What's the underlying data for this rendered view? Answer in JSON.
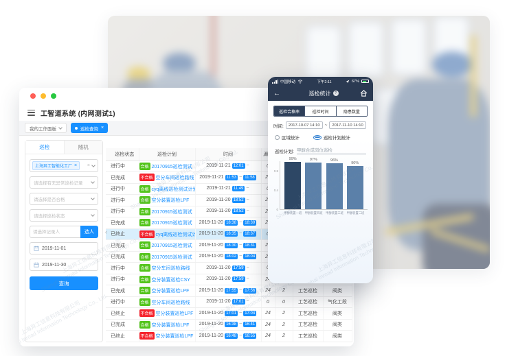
{
  "app": {
    "window_title": "工智道系统 (内网测试1)",
    "workspace_tab": "我的工作面板",
    "active_tab": "巡检查询"
  },
  "sidebar": {
    "tabs": [
      {
        "label": "巡检"
      },
      {
        "label": "随机"
      }
    ],
    "factory_tag": "上海异工智能化工厂",
    "selects": [
      {
        "placeholder": "请选择有无异常巡检记录"
      },
      {
        "placeholder": "请选择是否合格"
      },
      {
        "placeholder": "请选择巡检状态"
      }
    ],
    "person_input_placeholder": "请选择记录人",
    "pick_person_button": "选人",
    "date_from": "2019-11-01",
    "date_to": "2019-11-30",
    "query_button": "查询"
  },
  "table": {
    "headers": [
      "巡检状态",
      "巡检计划",
      "时间",
      "漏检",
      "异常",
      "类型",
      "工段"
    ],
    "rows": [
      {
        "status": "进行中",
        "qualified": "合格",
        "plan": "20170915巡检测试",
        "date": "2019-11-21",
        "start": "12:01",
        "end": "",
        "n1": "0",
        "n2": "",
        "type": "工艺巡检",
        "seg": "阀类",
        "highlight": false
      },
      {
        "status": "已完成",
        "qualified": "不合格",
        "plan": "空分车间巡检路线",
        "date": "2019-11-21",
        "start": "11:53",
        "end": "11:58",
        "n1": "24",
        "n2": "2",
        "type": "工艺巡检",
        "seg": "阀类",
        "highlight": false
      },
      {
        "status": "进行中",
        "qualified": "合格",
        "plan": "cyq离线巡检测试计划",
        "date": "2019-11-21",
        "start": "11:49",
        "end": "",
        "n1": "0",
        "n2": "",
        "type": "工艺巡检",
        "seg": "阀类",
        "highlight": false
      },
      {
        "status": "进行中",
        "qualified": "合格",
        "plan": "空分装置巡检LPF",
        "date": "2019-11-20",
        "start": "18:52",
        "end": "",
        "n1": "24",
        "n2": "2",
        "type": "工艺巡检",
        "seg": "阀类",
        "highlight": false
      },
      {
        "status": "进行中",
        "qualified": "合格",
        "plan": "20170915巡检测试",
        "date": "2019-11-20",
        "start": "18:52",
        "end": "",
        "n1": "24",
        "n2": "2",
        "type": "工艺巡检",
        "seg": "阀类",
        "highlight": false
      },
      {
        "status": "已完成",
        "qualified": "合格",
        "plan": "20170915巡检测试",
        "date": "2019-11-20",
        "start": "18:38",
        "end": "18:39",
        "n1": "24",
        "n2": "2",
        "type": "工艺巡检",
        "seg": "阀类",
        "highlight": false
      },
      {
        "status": "已终止",
        "qualified": "不合格",
        "plan": "cyq离线巡检测试计划",
        "date": "2019-11-20",
        "start": "18:35",
        "end": "18:37",
        "n1": "0",
        "n2": "2",
        "type": "工艺巡检",
        "seg": "阀类",
        "highlight": true
      },
      {
        "status": "已完成",
        "qualified": "合格",
        "plan": "20170915巡检测试",
        "date": "2019-11-20",
        "start": "18:30",
        "end": "18:31",
        "n1": "24",
        "n2": "2",
        "type": "工艺巡检",
        "seg": "阀类",
        "highlight": false
      },
      {
        "status": "已完成",
        "qualified": "合格",
        "plan": "20170915巡检测试",
        "date": "2019-11-20",
        "start": "18:02",
        "end": "18:04",
        "n1": "24",
        "n2": "2",
        "type": "工艺巡检",
        "seg": "阀类",
        "highlight": false
      },
      {
        "status": "进行中",
        "qualified": "合格",
        "plan": "空分车间巡检路线",
        "date": "2019-11-20",
        "start": "17:59",
        "end": "",
        "n1": "0",
        "n2": "",
        "type": "工艺巡检",
        "seg": "阀类",
        "highlight": false
      },
      {
        "status": "进行中",
        "qualified": "合格",
        "plan": "空分装置巡检CSY",
        "date": "2019-11-20",
        "start": "17:59",
        "end": "",
        "n1": "24",
        "n2": "2",
        "type": "工艺巡检",
        "seg": "阀类",
        "highlight": false
      },
      {
        "status": "已完成",
        "qualified": "合格",
        "plan": "空分装置巡检LPF",
        "date": "2019-11-20",
        "start": "17:55",
        "end": "17:56",
        "n1": "24",
        "n2": "2",
        "type": "工艺巡检",
        "seg": "阀类",
        "highlight": false
      },
      {
        "status": "进行中",
        "qualified": "合格",
        "plan": "空分车间巡检路线",
        "date": "2019-11-20",
        "start": "17:01",
        "end": "",
        "n1": "0",
        "n2": "0",
        "type": "工艺巡检",
        "seg": "气化工段",
        "highlight": false
      },
      {
        "status": "已终止",
        "qualified": "不合格",
        "plan": "空分装置巡检LPF",
        "date": "2019-11-20",
        "start": "17:01",
        "end": "17:04",
        "n1": "24",
        "n2": "2",
        "type": "工艺巡检",
        "seg": "阀类",
        "highlight": false
      },
      {
        "status": "已完成",
        "qualified": "合格",
        "plan": "空分装置巡检LPF",
        "date": "2019-11-20",
        "start": "16:38",
        "end": "16:41",
        "n1": "24",
        "n2": "2",
        "type": "工艺巡检",
        "seg": "阀类",
        "highlight": false
      },
      {
        "status": "已终止",
        "qualified": "不合格",
        "plan": "空分装置巡检LPF",
        "date": "2019-11-20",
        "start": "16:48",
        "end": "16:55",
        "n1": "24",
        "n2": "2",
        "type": "工艺巡检",
        "seg": "阀类",
        "highlight": false
      }
    ]
  },
  "phone": {
    "status_bar": {
      "carrier": "中国移动",
      "time": "下午2:11",
      "battery": "67%"
    },
    "nav_title": "巡检统计",
    "tabs": [
      {
        "label": "巡检合格率"
      },
      {
        "label": "巡检时间"
      },
      {
        "label": "隐患数量"
      }
    ],
    "time_label": "时间:",
    "time_from": "2017-10-07 14:10",
    "time_tilde": "~",
    "time_to": "2017-11-10 14:10",
    "radios": [
      {
        "label": "区域统计",
        "selected": false
      },
      {
        "label": "巡检计划统计",
        "selected": true
      }
    ],
    "plan_label": "巡检计划:",
    "plan_value": "甲醇合成岗位巡检"
  },
  "chart_data": {
    "type": "bar",
    "categories": [
      "甲醇装置一班",
      "甲醇装置四班",
      "甲醇装置三班",
      "甲醇装置二班"
    ],
    "values": [
      0.99,
      0.97,
      0.96,
      0.9
    ],
    "value_labels": [
      "99%",
      "97%",
      "96%",
      "90%"
    ],
    "title": "",
    "xlabel": "",
    "ylabel": "",
    "ylim": [
      0,
      1
    ],
    "yticks": [
      0,
      0.4,
      0.8
    ],
    "grid": false,
    "legend": false,
    "bar_colors": [
      "#2d4765",
      "#5b80a9",
      "#5b80a9",
      "#5b80a9"
    ]
  },
  "watermark": {
    "cn": "上海异工信息科技有限公司",
    "en": "Shanghai Inroad Information Technology Co., Ltd."
  },
  "colors": {
    "accent": "#1890ff",
    "ok_green": "#52c41a",
    "bad_red": "#f5222d",
    "navy": "#2b3a52"
  }
}
